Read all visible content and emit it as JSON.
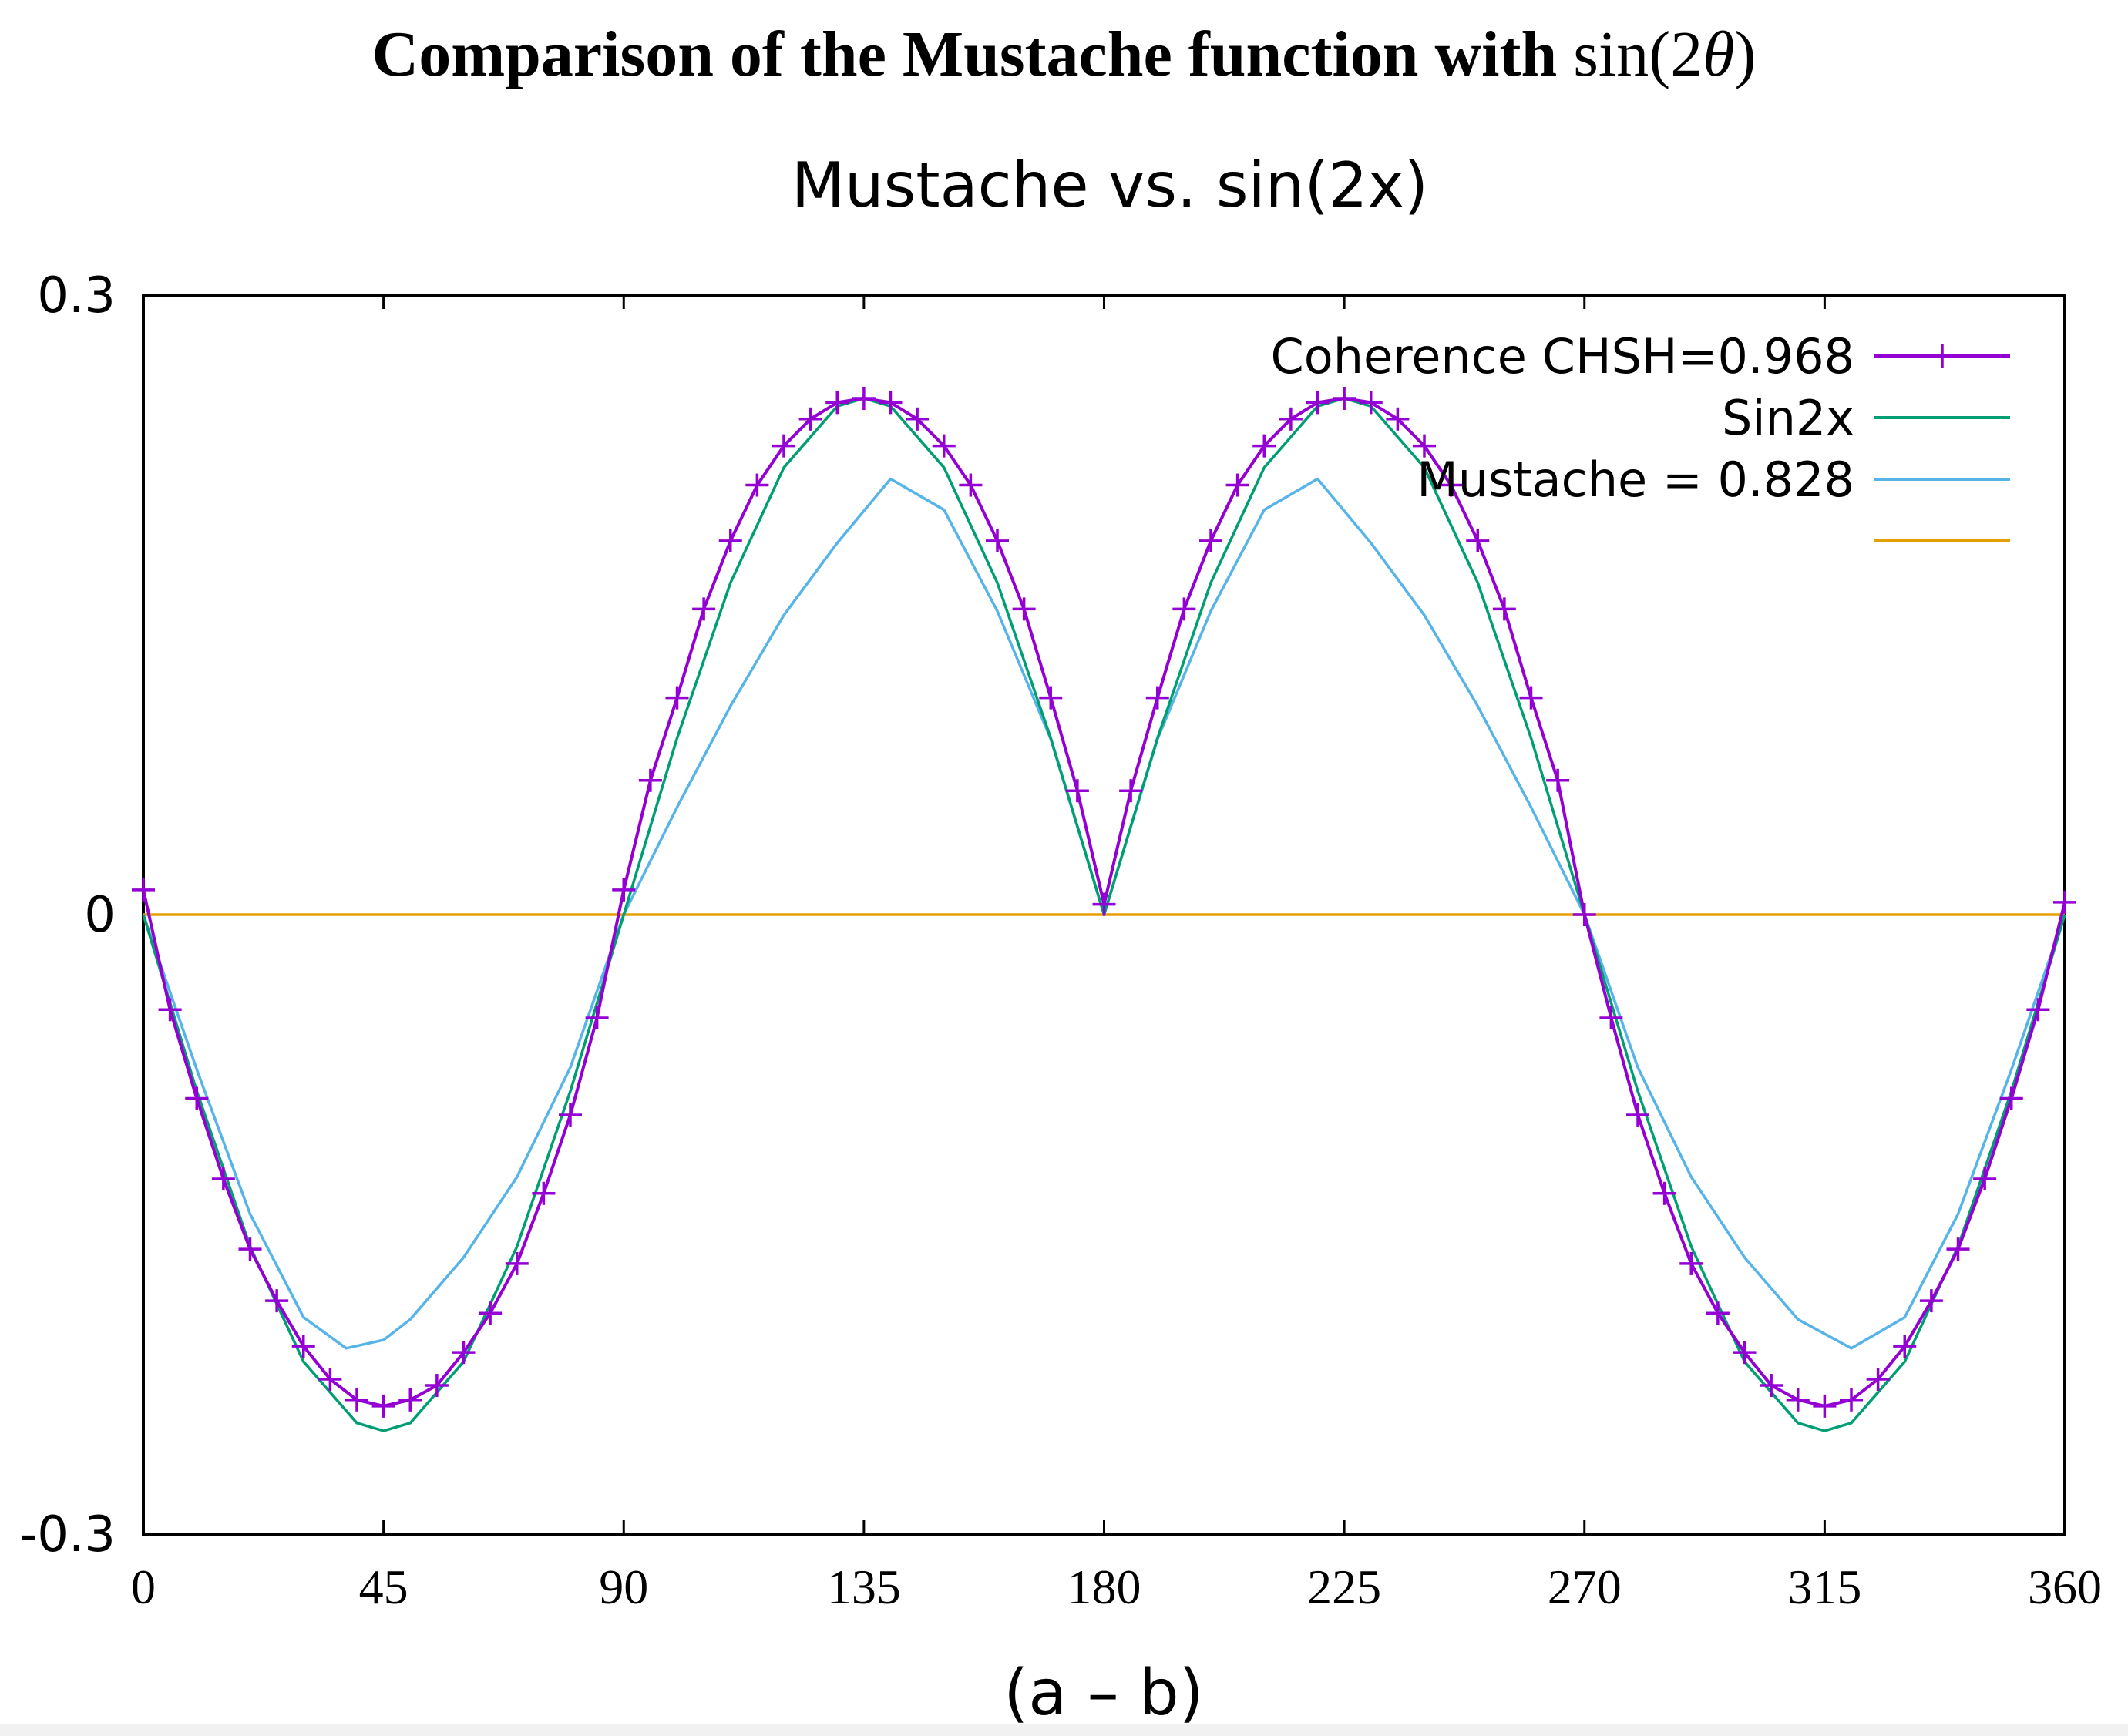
{
  "figure": {
    "heading_text": "Comparison of the Mustache function with ",
    "heading_math_prefix": "sin(2",
    "heading_math_var": "θ",
    "heading_math_suffix": ")"
  },
  "chart_data": {
    "type": "line",
    "title": "Mustache vs. sin(2x)",
    "xlabel": "(a – b)",
    "ylabel": "",
    "xlim": [
      0,
      360
    ],
    "ylim": [
      -0.3,
      0.3
    ],
    "x_ticks": [
      0,
      45,
      90,
      135,
      180,
      225,
      270,
      315,
      360
    ],
    "y_ticks": [
      0.3,
      0,
      -0.3
    ],
    "x_tick_labels": [
      "0",
      "45",
      "90",
      "135",
      "180",
      "225",
      "270",
      "315",
      "360"
    ],
    "y_tick_labels": [
      "0.3",
      "0",
      "-0.3"
    ],
    "grid": false,
    "legend_position": "top-right",
    "series": [
      {
        "name": "Coherence CHSH=0.968",
        "color": "#9400d3",
        "marker": "plus",
        "x": [
          0,
          5,
          10,
          15,
          20,
          25,
          30,
          35,
          40,
          45,
          50,
          55,
          60,
          65,
          70,
          75,
          80,
          85,
          90,
          95,
          100,
          105,
          110,
          115,
          120,
          125,
          130,
          135,
          140,
          145,
          150,
          155,
          160,
          165,
          170,
          175,
          180,
          185,
          190,
          195,
          200,
          205,
          210,
          215,
          220,
          225,
          230,
          235,
          240,
          245,
          250,
          255,
          260,
          265,
          270,
          275,
          280,
          285,
          290,
          295,
          300,
          305,
          310,
          315,
          320,
          325,
          330,
          335,
          340,
          345,
          350,
          355,
          360
        ],
        "values": [
          0.012,
          -0.046,
          -0.089,
          -0.128,
          -0.162,
          -0.187,
          -0.209,
          -0.225,
          -0.235,
          -0.238,
          -0.235,
          -0.228,
          -0.212,
          -0.193,
          -0.169,
          -0.135,
          -0.097,
          -0.05,
          0.012,
          0.065,
          0.105,
          0.148,
          0.181,
          0.208,
          0.227,
          0.24,
          0.248,
          0.25,
          0.248,
          0.24,
          0.227,
          0.208,
          0.181,
          0.148,
          0.105,
          0.06,
          0.005,
          0.06,
          0.105,
          0.148,
          0.181,
          0.208,
          0.227,
          0.24,
          0.248,
          0.25,
          0.248,
          0.24,
          0.227,
          0.208,
          0.181,
          0.148,
          0.105,
          0.065,
          0.0,
          -0.05,
          -0.097,
          -0.135,
          -0.169,
          -0.193,
          -0.212,
          -0.228,
          -0.235,
          -0.238,
          -0.235,
          -0.225,
          -0.209,
          -0.187,
          -0.162,
          -0.128,
          -0.089,
          -0.046,
          0.006
        ]
      },
      {
        "name": "Sin2x",
        "color": "#009e73",
        "marker": "none",
        "expression": "0.25*|sin(2x)| with sign: negative on (0,90) and (270,360), positive on (90,270)",
        "x": [
          0,
          10,
          20,
          30,
          40,
          45,
          50,
          60,
          70,
          80,
          90,
          100,
          110,
          120,
          130,
          135,
          140,
          150,
          160,
          170,
          180,
          190,
          200,
          210,
          220,
          225,
          230,
          240,
          250,
          260,
          270,
          280,
          290,
          300,
          310,
          315,
          320,
          330,
          340,
          350,
          360
        ],
        "values": [
          0,
          -0.0855,
          -0.1607,
          -0.2165,
          -0.2462,
          -0.25,
          -0.2462,
          -0.2165,
          -0.1607,
          -0.0855,
          0,
          0.0855,
          0.1607,
          0.2165,
          0.2462,
          0.25,
          0.2462,
          0.2165,
          0.1607,
          0.0855,
          0,
          0.0855,
          0.1607,
          0.2165,
          0.2462,
          0.25,
          0.2462,
          0.2165,
          0.1607,
          0.0855,
          0,
          -0.0855,
          -0.1607,
          -0.2165,
          -0.2462,
          -0.25,
          -0.2462,
          -0.2165,
          -0.1607,
          -0.0855,
          0
        ]
      },
      {
        "name": "Mustache = 0.828",
        "color": "#56b4e9",
        "marker": "none",
        "x": [
          0,
          10,
          20,
          30,
          38,
          45,
          50,
          60,
          70,
          80,
          90,
          100,
          110,
          120,
          130,
          140,
          150,
          160,
          170,
          180,
          190,
          200,
          210,
          220,
          230,
          240,
          250,
          260,
          270,
          280,
          290,
          300,
          310,
          320,
          330,
          340,
          350,
          360
        ],
        "values": [
          0,
          -0.075,
          -0.145,
          -0.195,
          -0.21,
          -0.206,
          -0.196,
          -0.166,
          -0.127,
          -0.074,
          0,
          0.052,
          0.101,
          0.145,
          0.18,
          0.211,
          0.196,
          0.147,
          0.085,
          0,
          0.085,
          0.147,
          0.196,
          0.211,
          0.18,
          0.145,
          0.101,
          0.052,
          0,
          -0.074,
          -0.127,
          -0.166,
          -0.196,
          -0.21,
          -0.195,
          -0.145,
          -0.075,
          0
        ]
      },
      {
        "name": "",
        "color": "#e69f00",
        "marker": "none",
        "x": [
          0,
          360
        ],
        "values": [
          0,
          0
        ]
      }
    ]
  }
}
